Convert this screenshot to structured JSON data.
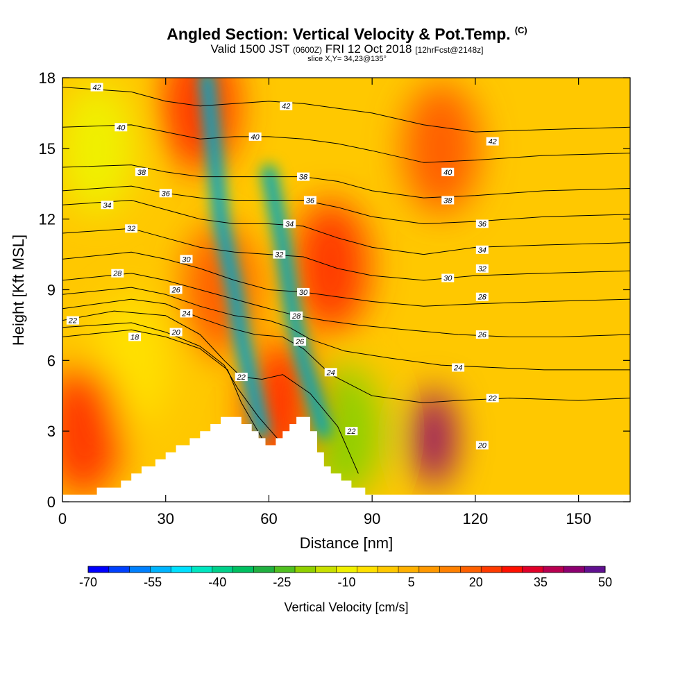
{
  "title": {
    "main": "Angled Section: Vertical Velocity & Pot.Temp.",
    "copyright_mark": "(C)",
    "valid_a": "Valid 1500 JST",
    "valid_b": "(0600Z)",
    "valid_c": "FRI 12 Oct 2018",
    "valid_d": "[12hrFcst@2148z]",
    "slice": "slice X,Y= 34,23@135°"
  },
  "chart_data": {
    "type": "heatmap",
    "xlabel": "Distance [nm]",
    "ylabel": "Height [Kft MSL]",
    "xlim": [
      0,
      165
    ],
    "ylim": [
      0,
      18
    ],
    "x_ticks": [
      0,
      30,
      60,
      90,
      120,
      150
    ],
    "y_ticks": [
      0,
      3,
      6,
      9,
      12,
      15,
      18
    ],
    "colorbar": {
      "label": "Vertical Velocity [cm/s]",
      "min": -70,
      "max": 50,
      "step": 5,
      "tick_labels": [
        -70,
        -55,
        -40,
        -25,
        -10,
        5,
        20,
        35,
        50
      ],
      "colors": [
        "#0000ff",
        "#0040ff",
        "#0080ff",
        "#00b4ff",
        "#00e0ff",
        "#00e6c0",
        "#00d08a",
        "#00c060",
        "#20b040",
        "#50c020",
        "#90d000",
        "#c8e000",
        "#f0f000",
        "#ffe000",
        "#ffc800",
        "#ffb000",
        "#ff9800",
        "#ff8000",
        "#ff6000",
        "#ff3a00",
        "#ff1000",
        "#e00028",
        "#b80050",
        "#8c0070",
        "#601090"
      ]
    },
    "terrain_profile": [
      [
        0,
        0.3
      ],
      [
        10,
        0.3
      ],
      [
        10,
        0.6
      ],
      [
        17,
        0.6
      ],
      [
        17,
        0.9
      ],
      [
        20,
        0.9
      ],
      [
        20,
        1.2
      ],
      [
        23,
        1.2
      ],
      [
        23,
        1.5
      ],
      [
        27,
        1.5
      ],
      [
        27,
        1.8
      ],
      [
        30,
        1.8
      ],
      [
        30,
        2.1
      ],
      [
        33,
        2.1
      ],
      [
        33,
        2.4
      ],
      [
        37,
        2.4
      ],
      [
        37,
        2.7
      ],
      [
        40,
        2.7
      ],
      [
        40,
        3.0
      ],
      [
        43,
        3.0
      ],
      [
        43,
        3.3
      ],
      [
        46,
        3.3
      ],
      [
        46,
        3.6
      ],
      [
        52,
        3.6
      ],
      [
        52,
        3.3
      ],
      [
        55,
        3.3
      ],
      [
        55,
        3.0
      ],
      [
        57,
        3.0
      ],
      [
        57,
        2.7
      ],
      [
        59,
        2.7
      ],
      [
        59,
        2.4
      ],
      [
        62,
        2.4
      ],
      [
        62,
        2.7
      ],
      [
        64,
        2.7
      ],
      [
        64,
        3.0
      ],
      [
        66,
        3.0
      ],
      [
        66,
        3.3
      ],
      [
        68,
        3.3
      ],
      [
        68,
        3.6
      ],
      [
        72,
        3.6
      ],
      [
        72,
        3.0
      ],
      [
        74,
        3.0
      ],
      [
        74,
        2.1
      ],
      [
        76,
        2.1
      ],
      [
        76,
        1.5
      ],
      [
        78,
        1.5
      ],
      [
        78,
        1.2
      ],
      [
        81,
        1.2
      ],
      [
        81,
        0.9
      ],
      [
        84,
        0.9
      ],
      [
        84,
        0.6
      ],
      [
        88,
        0.6
      ],
      [
        88,
        0.3
      ],
      [
        165,
        0.3
      ]
    ],
    "velocity_cells": [
      {
        "x": 40,
        "y": 16.8,
        "value": 25
      },
      {
        "x": 10,
        "y": 15,
        "value": -10
      },
      {
        "x": 20,
        "y": 6,
        "value": -5
      },
      {
        "x": 6,
        "y": 3,
        "value": 25
      },
      {
        "x": 78,
        "y": 10,
        "value": 25
      },
      {
        "x": 82,
        "y": 3,
        "value": -20
      },
      {
        "x": 108,
        "y": 2.7,
        "value": 45
      },
      {
        "x": 110,
        "y": 15,
        "value": 20
      },
      {
        "x": 46,
        "y": 9,
        "value": 20
      },
      {
        "x": 64,
        "y": 4,
        "value": 25
      }
    ],
    "downdraft_bands": [
      {
        "x": [
          42,
          46,
          50,
          52,
          55,
          58
        ],
        "y": [
          18,
          12,
          9,
          7,
          5,
          3
        ],
        "value": -40
      },
      {
        "x": [
          60,
          64,
          67,
          70,
          73,
          76
        ],
        "y": [
          14,
          11,
          8,
          6,
          4.5,
          3
        ],
        "value": -35
      }
    ],
    "theta_contours": [
      {
        "label": "18",
        "value": 18,
        "x": [
          0,
          20,
          30,
          40,
          48,
          52,
          58
        ],
        "y": [
          7.0,
          7.3,
          7.0,
          6.5,
          5.6,
          4.2,
          2.7
        ]
      },
      {
        "label": "20",
        "value": 20,
        "x": [
          0,
          20,
          30,
          40,
          47,
          51,
          57,
          63
        ],
        "y": [
          7.4,
          7.6,
          7.2,
          6.6,
          5.8,
          4.8,
          3.6,
          2.6
        ]
      },
      {
        "label": "22",
        "value": 22,
        "x": [
          0,
          15,
          30,
          40,
          47,
          52,
          58,
          64,
          72,
          80,
          86
        ],
        "y": [
          7.7,
          8.1,
          7.9,
          7.1,
          6.0,
          5.3,
          5.2,
          5.4,
          4.6,
          3.2,
          1.2
        ]
      },
      {
        "label": "24",
        "value": 24,
        "x": [
          0,
          20,
          30,
          40,
          48,
          56,
          64,
          70,
          78,
          90,
          105,
          115,
          130,
          150,
          165
        ],
        "y": [
          8.2,
          8.6,
          8.4,
          7.8,
          7.4,
          7.1,
          7.0,
          6.5,
          5.4,
          4.5,
          4.2,
          4.3,
          4.4,
          4.3,
          4.4
        ]
      },
      {
        "label": "26",
        "value": 26,
        "x": [
          0,
          20,
          30,
          40,
          50,
          60,
          66,
          72,
          82,
          95,
          110,
          125,
          140,
          165
        ],
        "y": [
          8.8,
          9.1,
          8.8,
          8.3,
          7.9,
          7.7,
          7.4,
          6.9,
          6.4,
          6.1,
          5.8,
          5.7,
          5.6,
          5.6
        ]
      },
      {
        "label": "28",
        "value": 28,
        "x": [
          0,
          20,
          30,
          40,
          50,
          60,
          68,
          76,
          86,
          100,
          115,
          130,
          145,
          165
        ],
        "y": [
          9.4,
          9.7,
          9.4,
          9.0,
          8.6,
          8.2,
          7.9,
          7.7,
          7.5,
          7.3,
          7.1,
          7.0,
          7.0,
          7.1
        ]
      },
      {
        "label": "30",
        "value": 30,
        "x": [
          0,
          20,
          30,
          40,
          50,
          60,
          70,
          80,
          90,
          105,
          120,
          140,
          165
        ],
        "y": [
          10.3,
          10.6,
          10.3,
          9.9,
          9.4,
          9.0,
          8.9,
          8.7,
          8.5,
          8.3,
          8.4,
          8.5,
          8.6
        ]
      },
      {
        "label": "32",
        "value": 32,
        "x": [
          0,
          20,
          30,
          40,
          50,
          60,
          70,
          80,
          90,
          105,
          120,
          140,
          165
        ],
        "y": [
          11.4,
          11.6,
          11.2,
          10.8,
          10.6,
          10.5,
          10.4,
          9.9,
          9.6,
          9.4,
          9.6,
          9.7,
          9.8
        ]
      },
      {
        "label": "34",
        "value": 34,
        "x": [
          0,
          20,
          30,
          40,
          50,
          60,
          70,
          80,
          90,
          105,
          120,
          140,
          165
        ],
        "y": [
          12.6,
          12.8,
          12.4,
          12.0,
          11.8,
          11.8,
          11.7,
          11.2,
          10.8,
          10.5,
          10.8,
          10.9,
          11.0
        ]
      },
      {
        "label": "36",
        "value": 36,
        "x": [
          0,
          20,
          30,
          40,
          50,
          60,
          70,
          80,
          90,
          105,
          120,
          140,
          165
        ],
        "y": [
          13.2,
          13.4,
          13.1,
          12.9,
          12.8,
          12.8,
          12.8,
          12.5,
          12.1,
          11.8,
          11.9,
          12.1,
          12.2
        ]
      },
      {
        "label": "38",
        "value": 38,
        "x": [
          0,
          20,
          30,
          40,
          50,
          60,
          70,
          80,
          90,
          105,
          120,
          140,
          165
        ],
        "y": [
          14.2,
          14.3,
          14.0,
          13.8,
          13.8,
          13.8,
          13.8,
          13.6,
          13.2,
          12.9,
          13.0,
          13.2,
          13.3
        ]
      },
      {
        "label": "40",
        "value": 40,
        "x": [
          0,
          20,
          30,
          40,
          50,
          60,
          70,
          80,
          90,
          105,
          120,
          140,
          165
        ],
        "y": [
          15.9,
          16.0,
          15.7,
          15.4,
          15.5,
          15.5,
          15.4,
          15.2,
          14.9,
          14.4,
          14.5,
          14.7,
          14.8
        ]
      },
      {
        "label": "42",
        "value": 42,
        "x": [
          0,
          20,
          30,
          40,
          50,
          60,
          70,
          80,
          90,
          105,
          120,
          140,
          165
        ],
        "y": [
          17.6,
          17.4,
          17.0,
          16.8,
          16.9,
          17.0,
          16.9,
          16.7,
          16.5,
          16.0,
          15.7,
          15.8,
          15.9
        ]
      }
    ],
    "contour_labels": [
      {
        "text": "42",
        "x": 10,
        "y": 17.6
      },
      {
        "text": "42",
        "x": 65,
        "y": 16.8
      },
      {
        "text": "42",
        "x": 125,
        "y": 15.3
      },
      {
        "text": "40",
        "x": 17,
        "y": 15.9
      },
      {
        "text": "40",
        "x": 56,
        "y": 15.5
      },
      {
        "text": "40",
        "x": 112,
        "y": 14.0
      },
      {
        "text": "38",
        "x": 23,
        "y": 14.0
      },
      {
        "text": "38",
        "x": 70,
        "y": 13.8
      },
      {
        "text": "38",
        "x": 112,
        "y": 12.8
      },
      {
        "text": "36",
        "x": 30,
        "y": 13.1
      },
      {
        "text": "36",
        "x": 72,
        "y": 12.8
      },
      {
        "text": "36",
        "x": 122,
        "y": 11.8
      },
      {
        "text": "34",
        "x": 13,
        "y": 12.6
      },
      {
        "text": "34",
        "x": 66,
        "y": 11.8
      },
      {
        "text": "34",
        "x": 122,
        "y": 10.7
      },
      {
        "text": "32",
        "x": 20,
        "y": 11.6
      },
      {
        "text": "32",
        "x": 63,
        "y": 10.5
      },
      {
        "text": "32",
        "x": 122,
        "y": 9.9
      },
      {
        "text": "30",
        "x": 36,
        "y": 10.3
      },
      {
        "text": "30",
        "x": 70,
        "y": 8.9
      },
      {
        "text": "30",
        "x": 112,
        "y": 9.5
      },
      {
        "text": "28",
        "x": 16,
        "y": 9.7
      },
      {
        "text": "28",
        "x": 68,
        "y": 7.9
      },
      {
        "text": "28",
        "x": 122,
        "y": 8.7
      },
      {
        "text": "26",
        "x": 33,
        "y": 9.0
      },
      {
        "text": "26",
        "x": 69,
        "y": 6.8
      },
      {
        "text": "26",
        "x": 122,
        "y": 7.1
      },
      {
        "text": "24",
        "x": 36,
        "y": 8.0
      },
      {
        "text": "24",
        "x": 78,
        "y": 5.5
      },
      {
        "text": "24",
        "x": 115,
        "y": 5.7
      },
      {
        "text": "22",
        "x": 3,
        "y": 7.7
      },
      {
        "text": "22",
        "x": 52,
        "y": 5.3
      },
      {
        "text": "22",
        "x": 84,
        "y": 3.0
      },
      {
        "text": "22",
        "x": 125,
        "y": 4.4
      },
      {
        "text": "20",
        "x": 33,
        "y": 7.2
      },
      {
        "text": "20",
        "x": 122,
        "y": 2.4
      },
      {
        "text": "18",
        "x": 21,
        "y": 7.0
      }
    ]
  }
}
